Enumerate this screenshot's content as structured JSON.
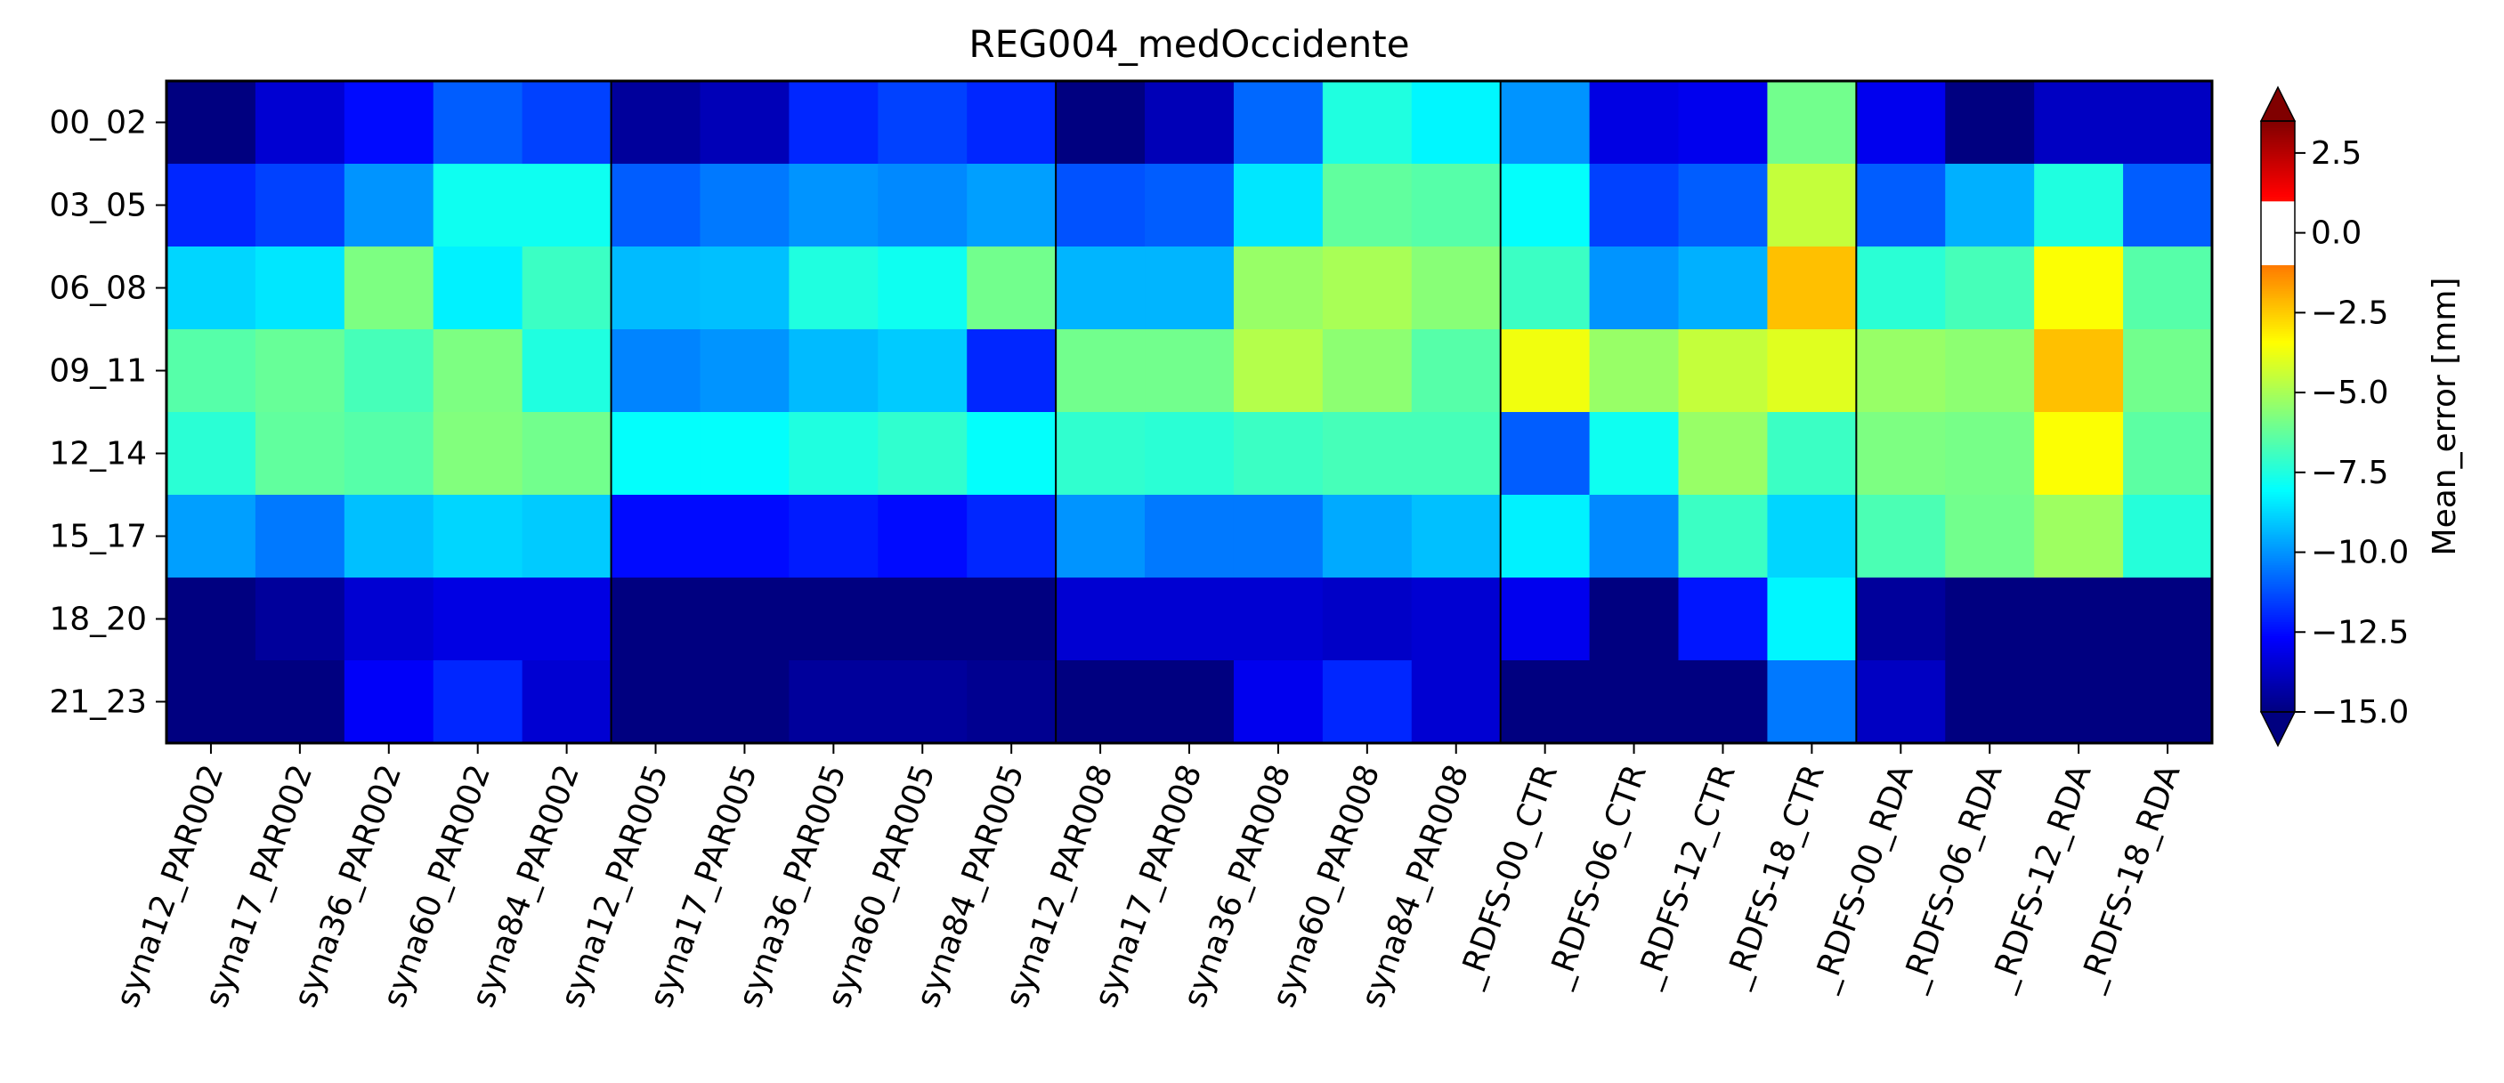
{
  "chart_data": {
    "type": "heatmap",
    "title": "REG004_medOccidente",
    "colorbar_label": "Mean_error [mm]",
    "colormap": "jet",
    "colorbar_extend": "both",
    "vmin": -15,
    "vmax": 3.5,
    "colorbar_ticks": [
      "2.5",
      "0.0",
      "−2.5",
      "−5.0",
      "−7.5",
      "−10.0",
      "−12.5",
      "−15.0"
    ],
    "colorbar_tick_values": [
      2.5,
      0.0,
      -2.5,
      -5.0,
      -7.5,
      -10.0,
      -12.5,
      -15.0
    ],
    "colorbar_white_band": [
      -1,
      1
    ],
    "rows": [
      "00_02",
      "03_05",
      "06_08",
      "09_11",
      "12_14",
      "15_17",
      "18_20",
      "21_23"
    ],
    "columns": [
      "syna12_PAR002",
      "syna17_PAR002",
      "syna36_PAR002",
      "syna60_PAR002",
      "syna84_PAR002",
      "syna12_PAR005",
      "syna17_PAR005",
      "syna36_PAR005",
      "syna60_PAR005",
      "syna84_PAR005",
      "syna12_PAR008",
      "syna17_PAR008",
      "syna36_PAR008",
      "syna60_PAR008",
      "syna84_PAR008",
      "_RDFS-00_CTR",
      "_RDFS-06_CTR",
      "_RDFS-12_CTR",
      "_RDFS-18_CTR",
      "_RDFS-00_RDA",
      "_RDFS-06_RDA",
      "_RDFS-12_RDA",
      "_RDFS-18_RDA"
    ],
    "group_boundaries_after_column": [
      4,
      9,
      14,
      18
    ],
    "values": [
      [
        -15.0,
        -13.5,
        -12.5,
        -11.0,
        -11.5,
        -14.5,
        -14.0,
        -12.0,
        -11.5,
        -12.0,
        -15.0,
        -14.0,
        -10.8,
        -7.5,
        -8.2,
        -10.0,
        -13.2,
        -13.0,
        -6.0,
        -13.0,
        -15.0,
        -13.8,
        -13.8
      ],
      [
        -12.0,
        -11.5,
        -10.0,
        -7.8,
        -7.8,
        -11.0,
        -10.5,
        -10.0,
        -10.2,
        -9.8,
        -11.2,
        -11.0,
        -8.5,
        -6.3,
        -6.5,
        -8.0,
        -11.5,
        -11.0,
        -4.5,
        -11.0,
        -9.5,
        -7.5,
        -11.0
      ],
      [
        -8.8,
        -8.5,
        -5.8,
        -8.3,
        -7.0,
        -9.3,
        -9.2,
        -7.5,
        -7.8,
        -6.0,
        -9.4,
        -9.4,
        -5.3,
        -5.0,
        -5.6,
        -7.0,
        -10.0,
        -9.5,
        -2.3,
        -7.3,
        -6.8,
        -3.5,
        -6.5
      ],
      [
        -6.5,
        -6.2,
        -6.8,
        -5.8,
        -7.5,
        -10.3,
        -10.0,
        -9.3,
        -9.0,
        -12.0,
        -6.0,
        -6.0,
        -4.8,
        -5.5,
        -6.5,
        -3.7,
        -5.3,
        -4.5,
        -4.0,
        -5.3,
        -5.5,
        -2.3,
        -6.0
      ],
      [
        -7.3,
        -6.3,
        -6.5,
        -5.7,
        -6.0,
        -8.0,
        -8.0,
        -7.5,
        -7.2,
        -8.0,
        -7.2,
        -7.3,
        -7.0,
        -6.8,
        -6.8,
        -11.0,
        -7.8,
        -5.3,
        -7.0,
        -5.8,
        -5.9,
        -3.5,
        -6.4
      ],
      [
        -9.8,
        -10.5,
        -9.2,
        -8.8,
        -9.0,
        -12.5,
        -12.5,
        -12.2,
        -12.5,
        -12.0,
        -10.0,
        -10.5,
        -10.5,
        -9.6,
        -9.2,
        -8.3,
        -10.2,
        -7.0,
        -8.8,
        -6.7,
        -6.0,
        -5.2,
        -7.4
      ],
      [
        -15.0,
        -14.5,
        -13.5,
        -13.2,
        -13.2,
        -15.0,
        -15.0,
        -15.0,
        -15.0,
        -15.0,
        -13.5,
        -13.5,
        -13.5,
        -13.7,
        -13.5,
        -13.0,
        -15.0,
        -12.3,
        -8.2,
        -14.5,
        -15.0,
        -15.0,
        -15.0
      ],
      [
        -15.0,
        -15.0,
        -12.8,
        -12.0,
        -13.5,
        -15.0,
        -15.0,
        -14.5,
        -14.5,
        -14.7,
        -15.0,
        -15.0,
        -13.0,
        -12.0,
        -13.5,
        -15.0,
        -15.0,
        -15.0,
        -10.5,
        -13.8,
        -15.0,
        -15.0,
        -15.0
      ]
    ]
  }
}
